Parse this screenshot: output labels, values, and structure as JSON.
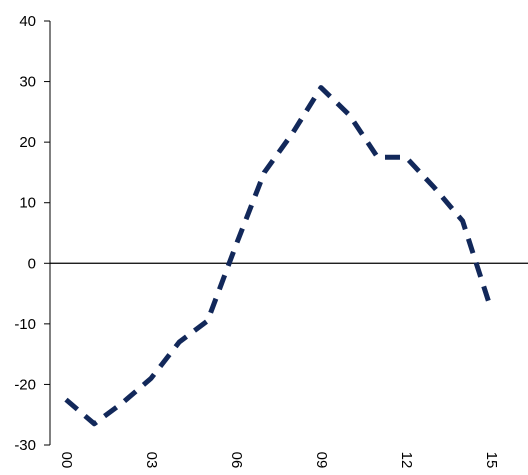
{
  "chart_data": {
    "type": "line",
    "title": "",
    "xlabel": "",
    "ylabel": "",
    "x": [
      "00",
      "01",
      "02",
      "03",
      "04",
      "05",
      "06",
      "07",
      "08",
      "09",
      "10",
      "11",
      "12",
      "13",
      "14",
      "15"
    ],
    "x_tick_labels": [
      "00",
      "03",
      "06",
      "09",
      "12",
      "15"
    ],
    "series": [
      {
        "values": [
          -22.5,
          -26.5,
          -23,
          -19,
          -13,
          -9.5,
          3,
          15,
          21.5,
          29,
          24.5,
          17.5,
          17.5,
          12.5,
          7,
          -7.5
        ],
        "color": "#12285a",
        "line_style": "dashed"
      }
    ],
    "ylim": [
      -30,
      40
    ],
    "yticks": [
      -30,
      -20,
      -10,
      0,
      10,
      20,
      30,
      40
    ],
    "grid": false,
    "legend": "none"
  }
}
